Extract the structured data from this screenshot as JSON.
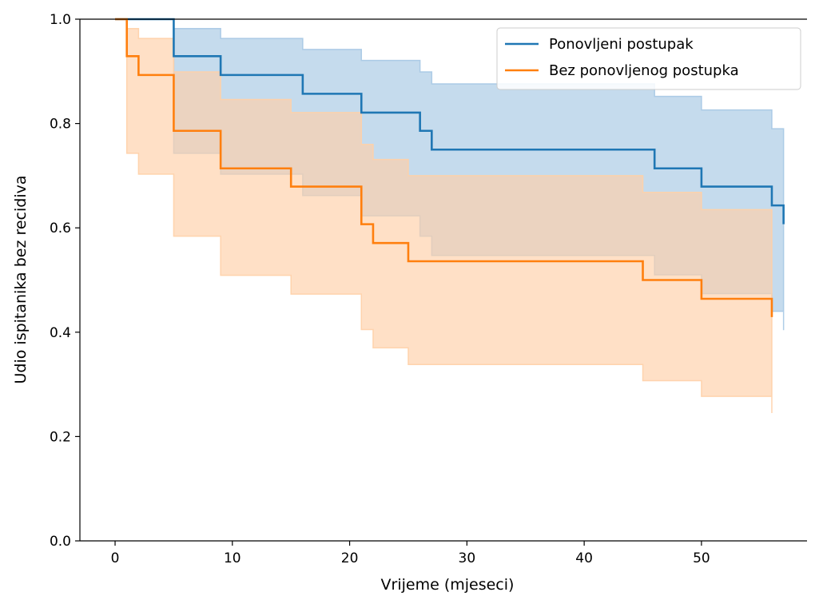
{
  "chart_data": {
    "type": "line",
    "title": "",
    "xlabel": "Vrijeme (mjeseci)",
    "ylabel": "Udio ispitanika bez recidiva",
    "xlim": [
      -3,
      59
    ],
    "ylim": [
      0,
      1
    ],
    "xticks": [
      0,
      10,
      20,
      30,
      40,
      50
    ],
    "yticks": [
      0.0,
      0.2,
      0.4,
      0.6,
      0.8,
      1.0
    ],
    "xtick_labels": [
      "0",
      "10",
      "20",
      "30",
      "40",
      "50"
    ],
    "ytick_labels": [
      "0.0",
      "0.2",
      "0.4",
      "0.6",
      "0.8",
      "1.0"
    ],
    "grid": false,
    "legend_position": "top-right",
    "series": [
      {
        "name": "Ponovljeni postupak",
        "color": "#1f77b4",
        "band_color": "#a6c8e4",
        "step": "post",
        "x": [
          0,
          5,
          9,
          16,
          21,
          26,
          27,
          46,
          50,
          56,
          57
        ],
        "y": [
          1.0,
          0.929,
          0.893,
          0.857,
          0.821,
          0.786,
          0.75,
          0.714,
          0.679,
          0.643,
          0.607
        ],
        "ci_lower": [
          1.0,
          0.743,
          0.703,
          0.662,
          0.623,
          0.584,
          0.547,
          0.51,
          0.474,
          0.44,
          0.404
        ],
        "ci_upper": [
          1.0,
          0.982,
          0.963,
          0.942,
          0.921,
          0.899,
          0.876,
          0.852,
          0.826,
          0.79,
          0.79
        ]
      },
      {
        "name": "Bez ponovljenog postupka",
        "color": "#ff7f0e",
        "band_color": "#ffd0a7",
        "step": "post",
        "x": [
          0,
          1,
          2,
          5,
          9,
          15,
          21,
          22,
          25,
          45,
          50,
          56
        ],
        "y": [
          1.0,
          0.929,
          0.893,
          0.786,
          0.714,
          0.679,
          0.607,
          0.571,
          0.536,
          0.5,
          0.464,
          0.429
        ],
        "ci_lower": [
          1.0,
          0.743,
          0.703,
          0.584,
          0.509,
          0.473,
          0.405,
          0.37,
          0.338,
          0.307,
          0.277,
          0.245
        ],
        "ci_upper": [
          1.0,
          0.982,
          0.963,
          0.899,
          0.846,
          0.821,
          0.76,
          0.731,
          0.7,
          0.668,
          0.635,
          0.635
        ]
      }
    ]
  }
}
